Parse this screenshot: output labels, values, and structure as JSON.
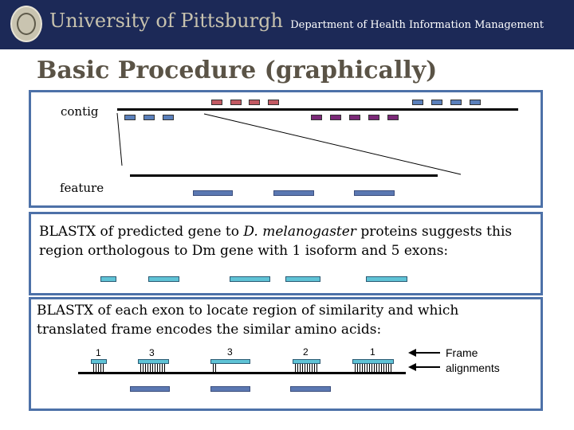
{
  "header": {
    "university": "University of Pittsburgh",
    "department": "Department of Health Information Management"
  },
  "slide": {
    "title": "Basic Procedure (graphically)"
  },
  "panel1": {
    "contig_label": "contig",
    "feature_label": "feature"
  },
  "panel2": {
    "text_prefix": "BLASTX of predicted gene to ",
    "organism": "D. melanogaster",
    "text_suffix": " proteins suggests this region orthologous to Dm gene with 1 isoform and 5 exons:"
  },
  "panel3": {
    "text": "BLASTX of each exon to locate region of similarity and which translated frame encodes the similar amino acids:",
    "frames": [
      "1",
      "3",
      "3",
      "2",
      "1"
    ],
    "legend": "Frame alignments"
  },
  "colors": {
    "header_bg": "#1c2957",
    "box_border": "#4d71a8",
    "title": "#5a5346",
    "exon_blue": "#5b78b2",
    "exon_cyan": "#5fc3d6",
    "match_red": "#c25a63",
    "match_purple": "#7c2a79"
  }
}
